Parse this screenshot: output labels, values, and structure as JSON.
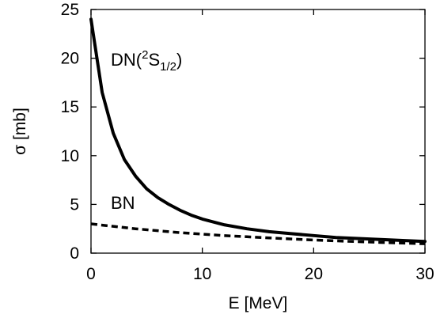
{
  "chart_data": {
    "type": "line",
    "xlabel": "E [MeV]",
    "ylabel": "σ [mb]",
    "xlim": [
      0,
      30
    ],
    "ylim": [
      0,
      25
    ],
    "xticks": [
      "0",
      "10",
      "20",
      "30"
    ],
    "yticks": [
      "0",
      "5",
      "10",
      "15",
      "20",
      "25"
    ],
    "grid": false,
    "series": [
      {
        "name": "DN(2S1/2)",
        "style": "solid",
        "color": "#000000",
        "x": [
          0,
          1,
          2,
          3,
          4,
          5,
          6,
          7,
          8,
          9,
          10,
          12,
          14,
          16,
          18,
          20,
          22,
          24,
          26,
          28,
          30
        ],
        "y": [
          24.0,
          16.5,
          12.3,
          9.6,
          7.9,
          6.6,
          5.7,
          5.0,
          4.4,
          3.9,
          3.5,
          2.9,
          2.5,
          2.2,
          2.0,
          1.8,
          1.6,
          1.5,
          1.4,
          1.3,
          1.2
        ]
      },
      {
        "name": "BN",
        "style": "dashed",
        "color": "#000000",
        "x": [
          0,
          2,
          4,
          6,
          8,
          10,
          12,
          14,
          16,
          18,
          20,
          22,
          24,
          26,
          28,
          30
        ],
        "y": [
          3.0,
          2.75,
          2.5,
          2.3,
          2.1,
          1.95,
          1.8,
          1.68,
          1.56,
          1.45,
          1.35,
          1.26,
          1.18,
          1.1,
          1.03,
          0.96
        ]
      }
    ],
    "annotations": {
      "dn": {
        "prefix": "DN(",
        "sup": "2",
        "main": "S",
        "sub": "1/2",
        "suffix": ")"
      },
      "bn": "BN"
    }
  }
}
